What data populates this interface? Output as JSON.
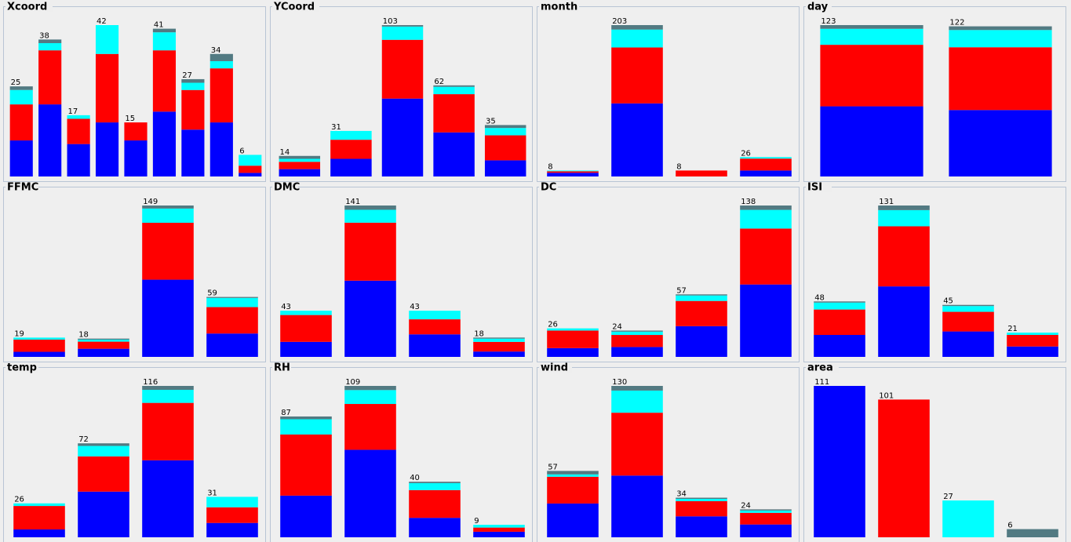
{
  "chart_data": [
    {
      "type": "bar",
      "title": "Xcoord",
      "totals": [
        25,
        38,
        17,
        42,
        15,
        41,
        27,
        34,
        6
      ],
      "series": [
        {
          "color": "#0000ff",
          "values": [
            10,
            20,
            9,
            15,
            10,
            18,
            13,
            15,
            1
          ]
        },
        {
          "color": "#ff0000",
          "values": [
            10,
            15,
            7,
            19,
            5,
            17,
            11,
            15,
            2
          ]
        },
        {
          "color": "#00ffff",
          "values": [
            4,
            2,
            1,
            8,
            0,
            5,
            2,
            2,
            3
          ]
        },
        {
          "color": "#527a82",
          "values": [
            1,
            1,
            0,
            0,
            0,
            1,
            1,
            2,
            0
          ]
        }
      ]
    },
    {
      "type": "bar",
      "title": "YCoord",
      "totals": [
        14,
        31,
        103,
        62,
        35
      ],
      "series": [
        {
          "color": "#0000ff",
          "values": [
            5,
            12,
            53,
            30,
            11
          ]
        },
        {
          "color": "#ff0000",
          "values": [
            5,
            13,
            40,
            26,
            17
          ]
        },
        {
          "color": "#00ffff",
          "values": [
            2,
            6,
            9,
            5,
            5
          ]
        },
        {
          "color": "#527a82",
          "values": [
            2,
            0,
            1,
            1,
            2
          ]
        }
      ]
    },
    {
      "type": "bar",
      "title": "month",
      "totals": [
        8,
        203,
        8,
        26
      ],
      "series": [
        {
          "color": "#0000ff",
          "values": [
            5,
            98,
            0,
            8
          ]
        },
        {
          "color": "#ff0000",
          "values": [
            2,
            75,
            8,
            16
          ]
        },
        {
          "color": "#00ffff",
          "values": [
            1,
            24,
            0,
            2
          ]
        },
        {
          "color": "#527a82",
          "values": [
            0,
            6,
            0,
            0
          ]
        }
      ]
    },
    {
      "type": "bar",
      "title": "day",
      "totals": [
        123,
        122
      ],
      "series": [
        {
          "color": "#0000ff",
          "values": [
            57,
            54
          ]
        },
        {
          "color": "#ff0000",
          "values": [
            50,
            51
          ]
        },
        {
          "color": "#00ffff",
          "values": [
            13,
            14
          ]
        },
        {
          "color": "#527a82",
          "values": [
            3,
            3
          ]
        }
      ]
    },
    {
      "type": "bar",
      "title": "FFMC",
      "totals": [
        19,
        18,
        149,
        59
      ],
      "series": [
        {
          "color": "#0000ff",
          "values": [
            5,
            8,
            76,
            23
          ]
        },
        {
          "color": "#ff0000",
          "values": [
            12,
            7,
            56,
            26
          ]
        },
        {
          "color": "#00ffff",
          "values": [
            2,
            2,
            14,
            9
          ]
        },
        {
          "color": "#527a82",
          "values": [
            0,
            1,
            3,
            1
          ]
        }
      ]
    },
    {
      "type": "bar",
      "title": "DMC",
      "totals": [
        43,
        141,
        43,
        18
      ],
      "series": [
        {
          "color": "#0000ff",
          "values": [
            14,
            71,
            21,
            5
          ]
        },
        {
          "color": "#ff0000",
          "values": [
            25,
            54,
            14,
            9
          ]
        },
        {
          "color": "#00ffff",
          "values": [
            4,
            12,
            8,
            3
          ]
        },
        {
          "color": "#527a82",
          "values": [
            0,
            4,
            0,
            1
          ]
        }
      ]
    },
    {
      "type": "bar",
      "title": "DC",
      "totals": [
        26,
        24,
        57,
        138
      ],
      "series": [
        {
          "color": "#0000ff",
          "values": [
            8,
            9,
            28,
            66
          ]
        },
        {
          "color": "#ff0000",
          "values": [
            16,
            11,
            23,
            51
          ]
        },
        {
          "color": "#00ffff",
          "values": [
            2,
            3,
            5,
            17
          ]
        },
        {
          "color": "#527a82",
          "values": [
            0,
            1,
            1,
            4
          ]
        }
      ]
    },
    {
      "type": "bar",
      "title": "ISI",
      "totals": [
        48,
        131,
        45,
        21
      ],
      "series": [
        {
          "color": "#0000ff",
          "values": [
            19,
            61,
            22,
            9
          ]
        },
        {
          "color": "#ff0000",
          "values": [
            22,
            52,
            17,
            10
          ]
        },
        {
          "color": "#00ffff",
          "values": [
            6,
            14,
            5,
            2
          ]
        },
        {
          "color": "#527a82",
          "values": [
            1,
            4,
            1,
            0
          ]
        }
      ]
    },
    {
      "type": "bar",
      "title": "temp",
      "totals": [
        26,
        72,
        116,
        31
      ],
      "series": [
        {
          "color": "#0000ff",
          "values": [
            6,
            35,
            59,
            11
          ]
        },
        {
          "color": "#ff0000",
          "values": [
            18,
            27,
            44,
            12
          ]
        },
        {
          "color": "#00ffff",
          "values": [
            2,
            8,
            10,
            8
          ]
        },
        {
          "color": "#527a82",
          "values": [
            0,
            2,
            3,
            0
          ]
        }
      ]
    },
    {
      "type": "bar",
      "title": "RH",
      "totals": [
        87,
        109,
        40,
        9
      ],
      "series": [
        {
          "color": "#0000ff",
          "values": [
            30,
            63,
            14,
            4
          ]
        },
        {
          "color": "#ff0000",
          "values": [
            44,
            33,
            20,
            3
          ]
        },
        {
          "color": "#00ffff",
          "values": [
            11,
            10,
            5,
            2
          ]
        },
        {
          "color": "#527a82",
          "values": [
            2,
            3,
            1,
            0
          ]
        }
      ]
    },
    {
      "type": "bar",
      "title": "wind",
      "totals": [
        57,
        130,
        34,
        24
      ],
      "series": [
        {
          "color": "#0000ff",
          "values": [
            29,
            53,
            18,
            11
          ]
        },
        {
          "color": "#ff0000",
          "values": [
            23,
            54,
            13,
            10
          ]
        },
        {
          "color": "#00ffff",
          "values": [
            2,
            19,
            2,
            2
          ]
        },
        {
          "color": "#527a82",
          "values": [
            3,
            4,
            1,
            1
          ]
        }
      ]
    },
    {
      "type": "bar",
      "title": "area",
      "totals": [
        111,
        101,
        27,
        6
      ],
      "series": [
        {
          "color": "#0000ff",
          "values": [
            111,
            0,
            0,
            0
          ]
        },
        {
          "color": "#ff0000",
          "values": [
            0,
            101,
            0,
            0
          ]
        },
        {
          "color": "#00ffff",
          "values": [
            0,
            0,
            27,
            0
          ]
        },
        {
          "color": "#527a82",
          "values": [
            0,
            0,
            0,
            6
          ]
        }
      ]
    }
  ]
}
